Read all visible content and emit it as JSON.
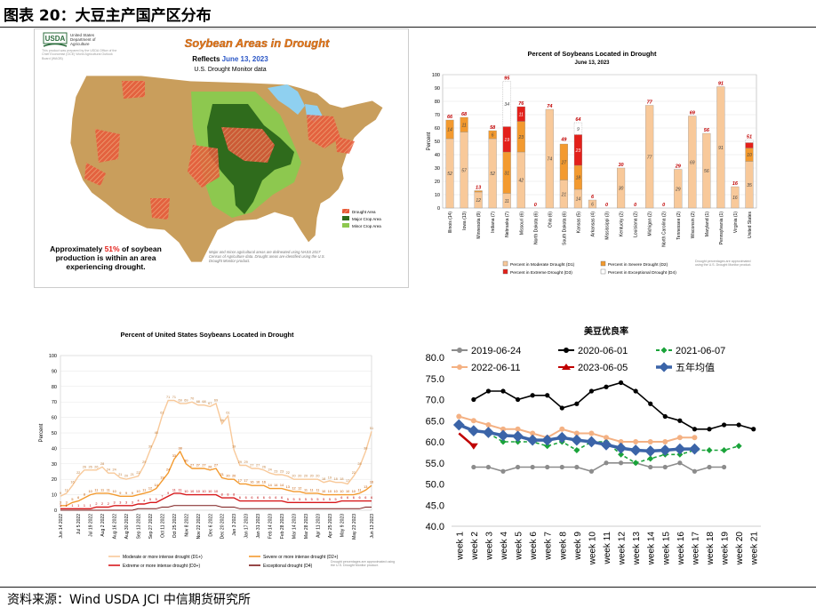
{
  "header": {
    "title": "图表 20：大豆主产国产区分布"
  },
  "footer": {
    "source": "资料来源：Wind USDA JCI 中信期货研究所"
  },
  "map": {
    "usda_logo": "USDA",
    "agency": [
      "United States",
      "Department of",
      "Agriculture"
    ],
    "small_note": "This product was prepared by the USDA Office of the Chief Economist (OCE) World Agricultural Outlook Board (WAOB)",
    "title": "Soybean Areas in Drought",
    "reflects": "Reflects",
    "date": "June 13, 2023",
    "subtitle": "U.S. Drought Monitor data",
    "legend": [
      {
        "label": "Drought Area",
        "color": "#e8583a"
      },
      {
        "label": "Major Crop Area",
        "color": "#2f6b1c"
      },
      {
        "label": "Minor Crop Area",
        "color": "#8dc84f"
      }
    ],
    "caption_pre": "Approximately ",
    "caption_pct": "51%",
    "caption_post": " of soybean",
    "caption_line2": "production is within an area",
    "caption_line3": "experiencing drought.",
    "footnote": "Major and minor agricultural areas are delineated using NASS 2017 Census of Agriculture data. Drought areas are identified using the U.S. Drought Monitor product."
  },
  "chart_data": [
    {
      "type": "bar",
      "title": "Percent of Soybeans Located in Drought",
      "subtitle": "June 13, 2023",
      "ylabel": "Percent",
      "ylim": [
        0,
        100
      ],
      "categories": [
        "Illinois (14)",
        "Iowa (13)",
        "Minnesota (9)",
        "Indiana (7)",
        "Nebraska (7)",
        "Missouri (6)",
        "North Dakota (6)",
        "Ohio (6)",
        "South Dakota (6)",
        "Kansas (5)",
        "Arkansas (4)",
        "Mississippi (3)",
        "Kentucky (2)",
        "Louisiana (2)",
        "Michigan (2)",
        "North Carolina (2)",
        "Tennessee (2)",
        "Wisconsin (2)",
        "Maryland (1)",
        "Pennsylvania (1)",
        "Virginia (1)",
        "United States"
      ],
      "totals": [
        66,
        68,
        13,
        58,
        95,
        76,
        0,
        74,
        49,
        64,
        6,
        0,
        30,
        0,
        77,
        0,
        29,
        69,
        56,
        91,
        16,
        51
      ],
      "series": [
        {
          "name": "Percent in Moderate Drought (D1)",
          "color": "#f8c99a",
          "values": [
            52,
            57,
            12,
            52,
            11,
            42,
            0,
            74,
            21,
            14,
            6,
            0,
            30,
            0,
            77,
            0,
            29,
            69,
            56,
            91,
            16,
            35
          ]
        },
        {
          "name": "Percent in Severe Drought (D2)",
          "color": "#f39a2f",
          "values": [
            14,
            11,
            1,
            6,
            31,
            23,
            0,
            0,
            27,
            18,
            0,
            0,
            0,
            0,
            0,
            0,
            0,
            0,
            0,
            0,
            0,
            10
          ]
        },
        {
          "name": "Percent in Extreme Drought (D3)",
          "color": "#e3201a",
          "values": [
            0,
            0,
            0,
            0,
            19,
            11,
            0,
            0,
            0,
            23,
            0,
            0,
            0,
            0,
            0,
            0,
            0,
            0,
            0,
            0,
            0,
            4
          ]
        },
        {
          "name": "Percent in Exceptional Drought (D4)",
          "color": "#ffffff",
          "values": [
            0,
            0,
            0,
            0,
            34,
            0,
            0,
            0,
            0,
            9,
            0,
            0,
            0,
            0,
            0,
            0,
            0,
            0,
            0,
            0,
            0,
            2
          ]
        }
      ],
      "footnote": "Drought percentages are approximated using the U.S. Drought Monitor product."
    },
    {
      "type": "line",
      "title": "Percent of United States Soybeans Located in Drought",
      "ylabel": "Percent",
      "ylim": [
        0,
        100
      ],
      "x": [
        "Jun 14 2022",
        "Jun 21 2022",
        "Jun 28 2022",
        "Jul 5 2022",
        "Jul 12 2022",
        "Jul 19 2022",
        "Jul 26 2022",
        "Aug 2 2022",
        "Aug 9 2022",
        "Aug 16 2022",
        "Aug 23 2022",
        "Aug 30 2022",
        "Sep 6 2022",
        "Sep 13 2022",
        "Sep 20 2022",
        "Sep 27 2022",
        "Oct 4 2022",
        "Oct 11 2022",
        "Oct 18 2022",
        "Oct 25 2022",
        "Nov 1 2022",
        "Nov 8 2022",
        "Nov 15 2022",
        "Nov 22 2022",
        "Nov 29 2022",
        "Dec 6 2022",
        "Dec 13 2022",
        "Dec 20 2022",
        "Dec 27 2022",
        "Jan 3 2023",
        "Jan 10 2023",
        "Jan 17 2023",
        "Jan 24 2023",
        "Jan 31 2023",
        "Feb 7 2023",
        "Feb 14 2023",
        "Feb 21 2023",
        "Feb 28 2023",
        "Mar 7 2023",
        "Mar 14 2023",
        "Mar 21 2023",
        "Mar 28 2023",
        "Apr 4 2023",
        "Apr 11 2023",
        "Apr 18 2023",
        "Apr 25 2023",
        "May 2 2023",
        "May 9 2023",
        "May 16 2023",
        "May 23 2023",
        "May 30 2023",
        "Jun 6 2023",
        "Jun 13 2023"
      ],
      "xticks": [
        "Jun 14 2022",
        "Jul 5 2022",
        "Jul 19 2022",
        "Aug 2 2022",
        "Aug 16 2022",
        "Aug 30 2022",
        "Sep 13 2022",
        "Sep 27 2022",
        "Oct 11 2022",
        "Oct 25 2022",
        "Nov 8 2022",
        "Nov 22 2022",
        "Dec 6 2022",
        "Dec 20 2022",
        "Jan 3 2023",
        "Jan 17 2023",
        "Jan 31 2023",
        "Feb 14 2023",
        "Feb 28 2023",
        "Mar 14 2023",
        "Mar 28 2023",
        "Apr 11 2023",
        "Apr 25 2023",
        "May 9 2023",
        "May 23 2023",
        "Jun 13 2023"
      ],
      "series": [
        {
          "name": "Moderate or more intense drought (D1+)",
          "color": "#f8c99a",
          "values": [
            9,
            11,
            16,
            22,
            26,
            26,
            26,
            28,
            24,
            24,
            21,
            20,
            21,
            22,
            29,
            39,
            48,
            61,
            71,
            71,
            69,
            69,
            70,
            68,
            68,
            67,
            69,
            56,
            61,
            39,
            29,
            29,
            27,
            27,
            26,
            24,
            23,
            23,
            22,
            20,
            20,
            20,
            20,
            20,
            18,
            19,
            18,
            18,
            17,
            22,
            28,
            38,
            51
          ]
        },
        {
          "name": "Severe or more intense drought (D2+)",
          "color": "#f39a2f",
          "values": [
            3,
            3,
            5,
            6,
            8,
            10,
            11,
            11,
            11,
            10,
            9,
            9,
            9,
            10,
            11,
            12,
            14,
            19,
            24,
            33,
            38,
            30,
            27,
            27,
            27,
            26,
            27,
            21,
            20,
            20,
            17,
            17,
            16,
            16,
            16,
            14,
            14,
            14,
            13,
            12,
            12,
            11,
            11,
            11,
            10,
            10,
            10,
            10,
            10,
            10,
            11,
            13,
            16
          ]
        },
        {
          "name": "Extreme or more intense drought (D3+)",
          "color": "#d7191c",
          "values": [
            1,
            1,
            1,
            1,
            1,
            1,
            2,
            2,
            2,
            3,
            3,
            3,
            3,
            4,
            4,
            5,
            5,
            7,
            9,
            11,
            11,
            10,
            10,
            10,
            10,
            10,
            10,
            8,
            8,
            8,
            6,
            6,
            6,
            6,
            6,
            6,
            6,
            6,
            5,
            5,
            5,
            5,
            5,
            5,
            5,
            5,
            5,
            6,
            6,
            6,
            6,
            6,
            6
          ]
        },
        {
          "name": "Exceptional drought (D4)",
          "color": "#7b1a1a",
          "values": [
            0,
            0,
            0,
            0,
            0,
            0,
            0,
            0,
            0,
            0,
            0,
            0,
            0,
            1,
            1,
            1,
            1,
            2,
            2,
            3,
            3,
            3,
            3,
            3,
            3,
            3,
            3,
            2,
            2,
            2,
            1,
            1,
            1,
            1,
            1,
            1,
            1,
            1,
            1,
            1,
            1,
            1,
            1,
            1,
            1,
            1,
            1,
            1,
            1,
            1,
            1,
            2,
            2
          ]
        }
      ],
      "footnote": "Drought percentages are approximated using the U.S. Drought Monitor product."
    },
    {
      "type": "line",
      "title": "美豆优良率",
      "ylim": [
        40,
        80
      ],
      "yticks": [
        "40.0",
        "45.0",
        "50.0",
        "55.0",
        "60.0",
        "65.0",
        "70.0",
        "75.0",
        "80.0"
      ],
      "categories": [
        "week 1",
        "week 2",
        "week 3",
        "week 4",
        "week 5",
        "week 6",
        "week 7",
        "week 8",
        "week 9",
        "week 10",
        "week 11",
        "week 12",
        "week 13",
        "week 14",
        "week 15",
        "week 16",
        "week 17",
        "week 18",
        "week 19",
        "week 20",
        "week 21"
      ],
      "series": [
        {
          "name": "2019-06-24",
          "color": "#8c8c8c",
          "values": [
            null,
            54,
            54,
            53,
            54,
            54,
            54,
            54,
            54,
            53,
            55,
            55,
            55,
            54,
            54,
            55,
            53,
            54,
            54,
            null,
            null
          ]
        },
        {
          "name": "2020-06-01",
          "color": "#000000",
          "values": [
            null,
            70,
            72,
            72,
            70,
            71,
            71,
            68,
            69,
            72,
            73,
            74,
            72,
            69,
            66,
            65,
            63,
            63,
            64,
            64,
            63
          ]
        },
        {
          "name": "2021-06-07",
          "color": "#1aa33a",
          "values": [
            null,
            null,
            62,
            60,
            60,
            60,
            59,
            60,
            58,
            60,
            60,
            57,
            55,
            56,
            57,
            57,
            58,
            58,
            58,
            59,
            null
          ]
        },
        {
          "name": "2022-06-11",
          "color": "#f4b183",
          "values": [
            66,
            65,
            64,
            63,
            63,
            62,
            61,
            63,
            62,
            62,
            61,
            60,
            60,
            60,
            60,
            61,
            61,
            null,
            null,
            null,
            null
          ]
        },
        {
          "name": "2023-06-05",
          "color": "#c00000",
          "values": [
            62,
            59,
            null,
            null,
            null,
            null,
            null,
            null,
            null,
            null,
            null,
            null,
            null,
            null,
            null,
            null,
            null,
            null,
            null,
            null,
            null
          ]
        },
        {
          "name": "五年均值",
          "color": "#3b64a8",
          "values": [
            64,
            62.6,
            62.2,
            61.5,
            61.3,
            60.4,
            60.4,
            61,
            60.4,
            60,
            59.3,
            58.5,
            58,
            57.8,
            58,
            58.3,
            58.3,
            null,
            null,
            null,
            null
          ]
        }
      ]
    }
  ]
}
